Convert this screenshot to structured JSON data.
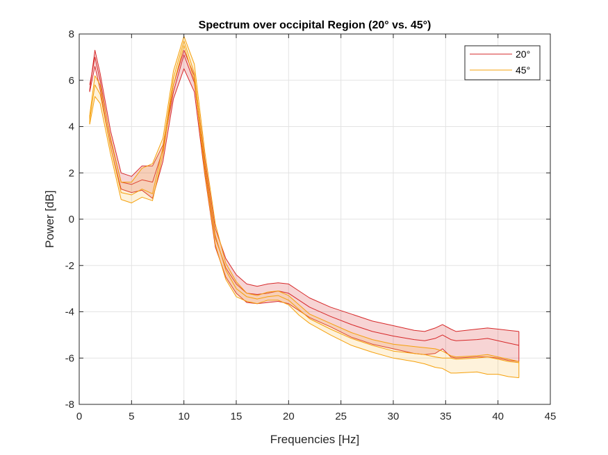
{
  "chart_data": {
    "type": "line",
    "title": "Spectrum over occipital Region (20° vs. 45°)",
    "xlabel": "Frequencies [Hz]",
    "ylabel": "Power [dB]",
    "xlim": [
      0,
      45
    ],
    "ylim": [
      -8,
      8
    ],
    "xticks": [
      0,
      5,
      10,
      15,
      20,
      25,
      30,
      35,
      40,
      45
    ],
    "yticks": [
      -8,
      -6,
      -4,
      -2,
      0,
      2,
      4,
      6,
      8
    ],
    "grid": true,
    "legend_position": "top-right",
    "series": [
      {
        "name": "20°",
        "color": "#d62728",
        "fill": "#d62728",
        "x": [
          1.0,
          1.5,
          2.0,
          3.0,
          4.0,
          5.0,
          6.0,
          7.0,
          8.0,
          9.0,
          10.0,
          11.0,
          12.0,
          13.0,
          14.0,
          15.0,
          16.0,
          17.0,
          18.0,
          19.0,
          20.0,
          21.0,
          22.0,
          24.0,
          26.0,
          28.0,
          30.0,
          32.0,
          33.0,
          34.0,
          34.7,
          35.5,
          36.0,
          38.0,
          39.0,
          40.0,
          41.0,
          42.0
        ],
        "upper": [
          5.6,
          7.3,
          6.3,
          3.8,
          2.0,
          1.85,
          2.3,
          2.3,
          3.2,
          5.8,
          7.3,
          6.2,
          2.6,
          -0.4,
          -1.7,
          -2.4,
          -2.8,
          -2.9,
          -2.8,
          -2.75,
          -2.8,
          -3.1,
          -3.4,
          -3.8,
          -4.1,
          -4.4,
          -4.6,
          -4.8,
          -4.85,
          -4.7,
          -4.55,
          -4.75,
          -4.85,
          -4.75,
          -4.7,
          -4.75,
          -4.8,
          -4.85
        ],
        "mean": [
          5.8,
          7.0,
          6.0,
          3.4,
          1.6,
          1.5,
          1.7,
          1.6,
          3.0,
          5.5,
          7.1,
          5.9,
          2.2,
          -0.8,
          -2.1,
          -2.8,
          -3.2,
          -3.25,
          -3.2,
          -3.1,
          -3.2,
          -3.5,
          -3.8,
          -4.2,
          -4.55,
          -4.85,
          -5.05,
          -5.2,
          -5.25,
          -5.15,
          -5.0,
          -5.2,
          -5.25,
          -5.2,
          -5.15,
          -5.25,
          -5.35,
          -5.45
        ],
        "lower": [
          5.5,
          6.6,
          5.6,
          3.1,
          1.3,
          1.15,
          1.25,
          0.9,
          2.5,
          5.2,
          6.5,
          5.5,
          1.9,
          -1.2,
          -2.5,
          -3.2,
          -3.6,
          -3.65,
          -3.6,
          -3.55,
          -3.65,
          -3.95,
          -4.25,
          -4.65,
          -5.1,
          -5.4,
          -5.6,
          -5.8,
          -5.85,
          -5.8,
          -5.6,
          -5.95,
          -6.0,
          -5.95,
          -5.95,
          -6.0,
          -6.1,
          -6.15
        ]
      },
      {
        "name": "45°",
        "color": "#f5a00a",
        "fill": "#fbbf4a",
        "x": [
          1.0,
          1.5,
          2.0,
          3.0,
          4.0,
          5.0,
          6.0,
          7.0,
          8.0,
          9.0,
          10.0,
          11.0,
          12.0,
          13.0,
          14.0,
          15.0,
          16.0,
          17.0,
          18.0,
          19.0,
          20.0,
          21.0,
          22.0,
          24.0,
          26.0,
          28.0,
          30.0,
          32.0,
          33.0,
          34.0,
          34.7,
          35.5,
          36.0,
          38.0,
          39.0,
          40.0,
          41.0,
          42.0
        ],
        "upper": [
          4.5,
          6.2,
          5.8,
          3.5,
          1.6,
          1.6,
          2.2,
          2.4,
          3.5,
          6.4,
          7.9,
          6.7,
          2.9,
          -0.2,
          -1.9,
          -2.7,
          -3.2,
          -3.3,
          -3.15,
          -3.1,
          -3.3,
          -3.7,
          -4.1,
          -4.5,
          -4.9,
          -5.2,
          -5.4,
          -5.5,
          -5.55,
          -5.6,
          -5.7,
          -5.9,
          -5.95,
          -5.9,
          -5.85,
          -5.95,
          -6.05,
          -6.15
        ],
        "mean": [
          4.3,
          5.8,
          5.4,
          3.1,
          1.15,
          1.05,
          1.3,
          1.1,
          3.1,
          6.1,
          7.7,
          6.3,
          2.4,
          -0.7,
          -2.2,
          -3.0,
          -3.35,
          -3.45,
          -3.35,
          -3.3,
          -3.5,
          -3.9,
          -4.3,
          -4.75,
          -5.15,
          -5.45,
          -5.7,
          -5.8,
          -5.85,
          -5.95,
          -6.0,
          -6.0,
          -6.05,
          -6.0,
          -5.95,
          -6.05,
          -6.15,
          -6.2
        ],
        "lower": [
          4.1,
          5.3,
          5.0,
          2.8,
          0.85,
          0.7,
          0.95,
          0.8,
          2.8,
          5.8,
          7.5,
          6.0,
          2.0,
          -1.1,
          -2.6,
          -3.35,
          -3.55,
          -3.65,
          -3.5,
          -3.5,
          -3.7,
          -4.15,
          -4.5,
          -5.0,
          -5.45,
          -5.75,
          -6.0,
          -6.15,
          -6.25,
          -6.4,
          -6.45,
          -6.65,
          -6.65,
          -6.6,
          -6.7,
          -6.7,
          -6.8,
          -6.85
        ]
      }
    ]
  }
}
